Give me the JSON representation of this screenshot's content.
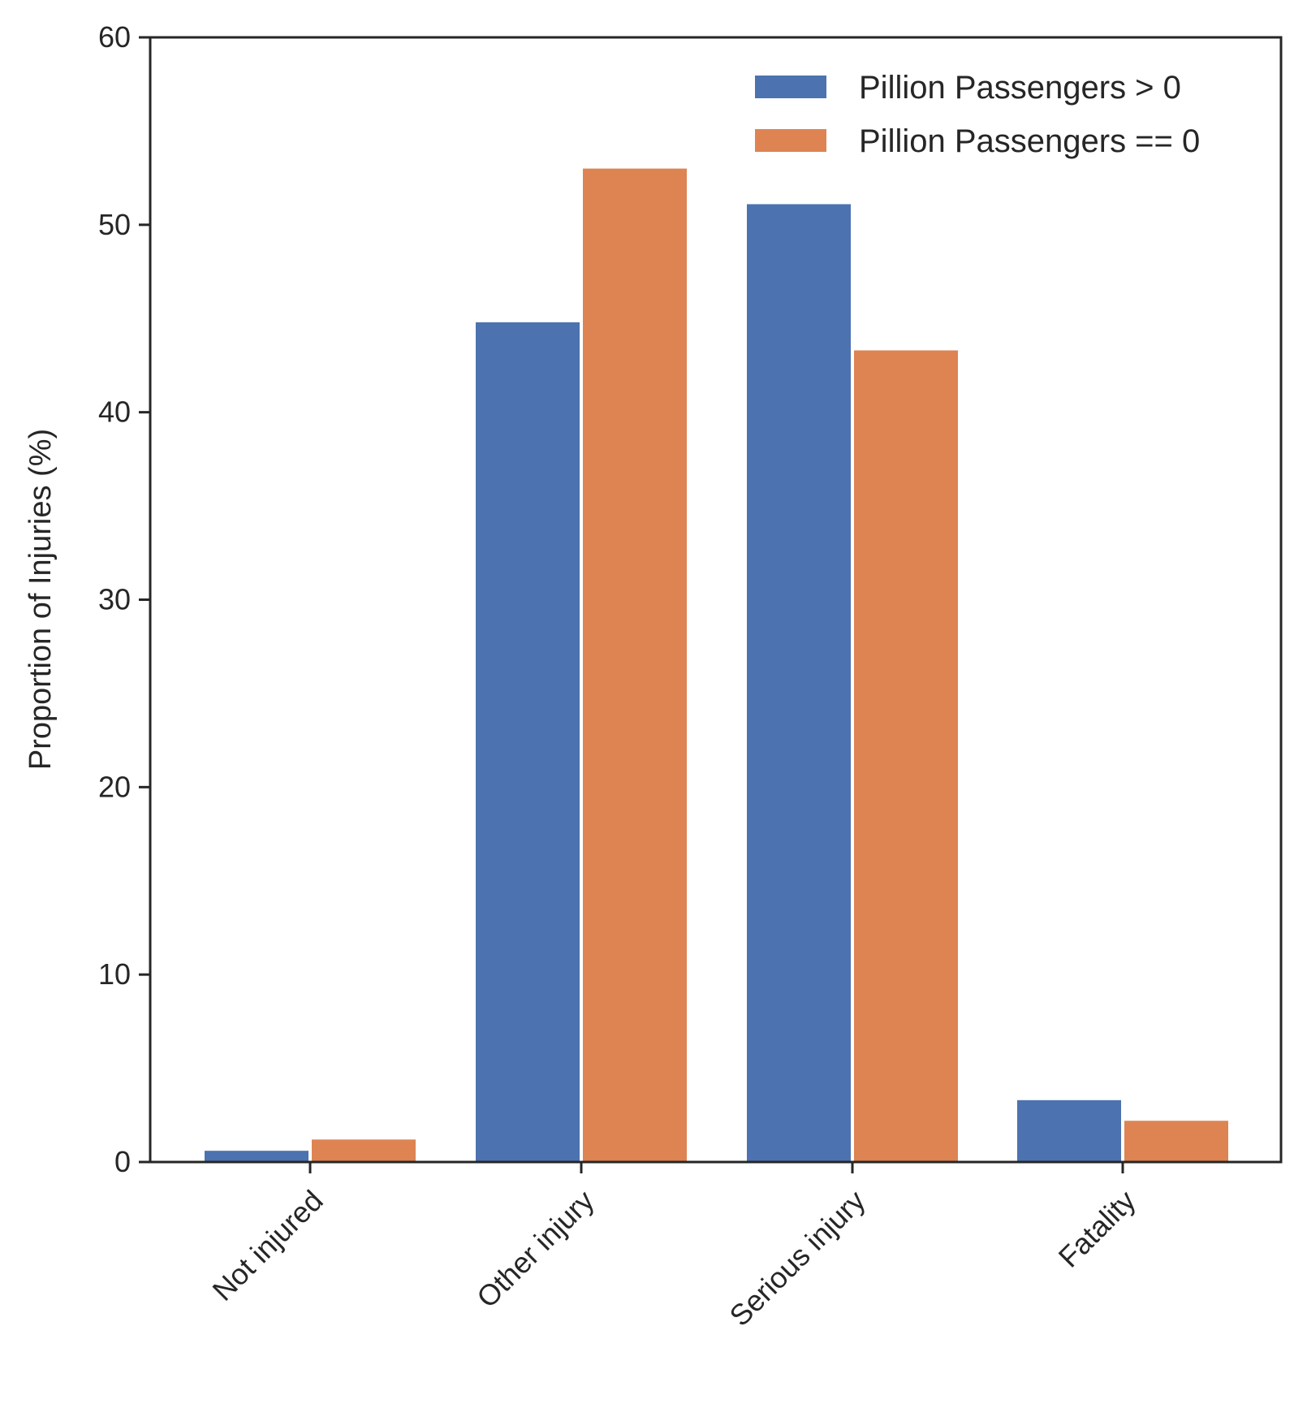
{
  "chart_data": {
    "type": "bar",
    "categories": [
      "Not injured",
      "Other injury",
      "Serious injury",
      "Fatality"
    ],
    "series": [
      {
        "name": "Pillion Passengers > 0",
        "values": [
          0.6,
          44.8,
          51.1,
          3.3
        ],
        "color": "#4c72b0"
      },
      {
        "name": "Pillion Passengers == 0",
        "values": [
          1.2,
          53.0,
          43.3,
          2.2
        ],
        "color": "#dd8452"
      }
    ],
    "ylabel": "Proportion of Injuries (%)",
    "xlabel": "",
    "ylim": [
      0,
      60
    ],
    "yticks": [
      0,
      10,
      20,
      30,
      40,
      50,
      60
    ],
    "grid": false,
    "legend_position": "top-right"
  }
}
